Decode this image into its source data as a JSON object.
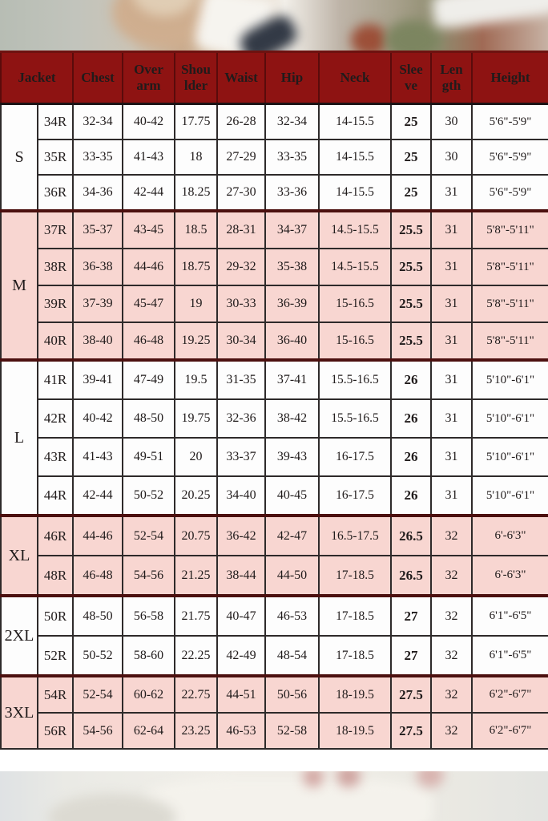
{
  "colors": {
    "header_bg": "#8E1312",
    "header_text": "#FFFFFF",
    "header_line": "#5A0B0B",
    "row_pink": "#F8D6D1",
    "row_white": "#FDFDFD",
    "grid_line": "#2E2A2A",
    "group_separator": "#4C100F",
    "cell_text": "#201B1B"
  },
  "chart_data": {
    "type": "table",
    "columns": [
      "Jacket",
      "Chest",
      "Over\narm",
      "Shou\nlder",
      "Waist",
      "Hip",
      "Neck",
      "Slee\nve",
      "Len\ngth",
      "Height"
    ],
    "column_keys": [
      "jacket",
      "chest",
      "overarm",
      "shoulder",
      "waist",
      "hip",
      "neck",
      "sleeve",
      "length",
      "height"
    ],
    "groups": [
      {
        "label": "S",
        "shade": "white",
        "rows": [
          [
            "34R",
            "32-34",
            "40-42",
            "17.75",
            "26-28",
            "32-34",
            "14-15.5",
            "25",
            "30",
            "5'6\"-5'9\""
          ],
          [
            "35R",
            "33-35",
            "41-43",
            "18",
            "27-29",
            "33-35",
            "14-15.5",
            "25",
            "30",
            "5'6\"-5'9\""
          ],
          [
            "36R",
            "34-36",
            "42-44",
            "18.25",
            "27-30",
            "33-36",
            "14-15.5",
            "25",
            "31",
            "5'6\"-5'9\""
          ]
        ]
      },
      {
        "label": "M",
        "shade": "pink",
        "rows": [
          [
            "37R",
            "35-37",
            "43-45",
            "18.5",
            "28-31",
            "34-37",
            "14.5-15.5",
            "25.5",
            "31",
            "5'8\"-5'11\""
          ],
          [
            "38R",
            "36-38",
            "44-46",
            "18.75",
            "29-32",
            "35-38",
            "14.5-15.5",
            "25.5",
            "31",
            "5'8\"-5'11\""
          ],
          [
            "39R",
            "37-39",
            "45-47",
            "19",
            "30-33",
            "36-39",
            "15-16.5",
            "25.5",
            "31",
            "5'8\"-5'11\""
          ],
          [
            "40R",
            "38-40",
            "46-48",
            "19.25",
            "30-34",
            "36-40",
            "15-16.5",
            "25.5",
            "31",
            "5'8\"-5'11\""
          ]
        ]
      },
      {
        "label": "L",
        "shade": "white",
        "rows": [
          [
            "41R",
            "39-41",
            "47-49",
            "19.5",
            "31-35",
            "37-41",
            "15.5-16.5",
            "26",
            "31",
            "5'10\"-6'1\""
          ],
          [
            "42R",
            "40-42",
            "48-50",
            "19.75",
            "32-36",
            "38-42",
            "15.5-16.5",
            "26",
            "31",
            "5'10\"-6'1\""
          ],
          [
            "43R",
            "41-43",
            "49-51",
            "20",
            "33-37",
            "39-43",
            "16-17.5",
            "26",
            "31",
            "5'10\"-6'1\""
          ],
          [
            "44R",
            "42-44",
            "50-52",
            "20.25",
            "34-40",
            "40-45",
            "16-17.5",
            "26",
            "31",
            "5'10\"-6'1\""
          ]
        ]
      },
      {
        "label": "XL",
        "shade": "pink",
        "rows": [
          [
            "46R",
            "44-46",
            "52-54",
            "20.75",
            "36-42",
            "42-47",
            "16.5-17.5",
            "26.5",
            "32",
            "6'-6'3\""
          ],
          [
            "48R",
            "46-48",
            "54-56",
            "21.25",
            "38-44",
            "44-50",
            "17-18.5",
            "26.5",
            "32",
            "6'-6'3\""
          ]
        ]
      },
      {
        "label": "2XL",
        "shade": "white",
        "rows": [
          [
            "50R",
            "48-50",
            "56-58",
            "21.75",
            "40-47",
            "46-53",
            "17-18.5",
            "27",
            "32",
            "6'1\"-6'5\""
          ],
          [
            "52R",
            "50-52",
            "58-60",
            "22.25",
            "42-49",
            "48-54",
            "17-18.5",
            "27",
            "32",
            "6'1\"-6'5\""
          ]
        ]
      },
      {
        "label": "3XL",
        "shade": "pink",
        "rows": [
          [
            "54R",
            "52-54",
            "60-62",
            "22.75",
            "44-51",
            "50-56",
            "18-19.5",
            "27.5",
            "32",
            "6'2\"-6'7\""
          ],
          [
            "56R",
            "54-56",
            "62-64",
            "23.25",
            "46-53",
            "52-58",
            "18-19.5",
            "27.5",
            "32",
            "6'2\"-6'7\""
          ]
        ]
      }
    ]
  }
}
